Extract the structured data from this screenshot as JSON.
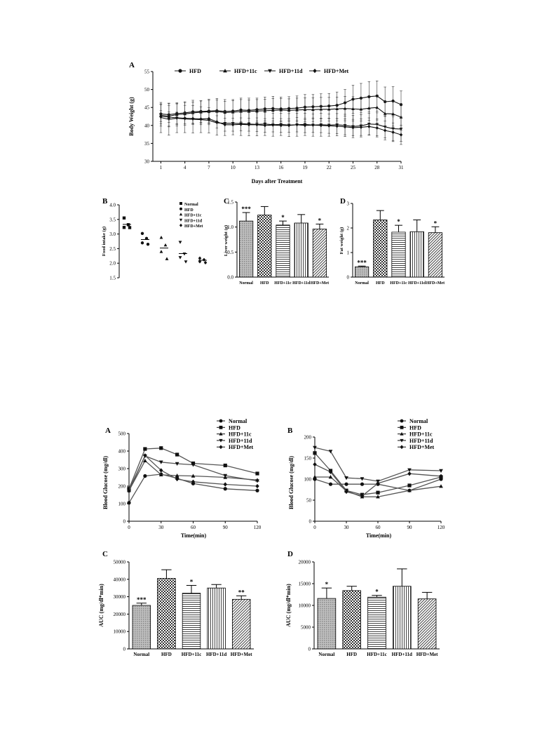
{
  "figure1": {
    "A": {
      "letter": "A",
      "xlabel": "Days after Treatment",
      "ylabel": "Body Weight (g)",
      "xticks": [
        1,
        4,
        7,
        10,
        13,
        16,
        19,
        22,
        25,
        28,
        31
      ],
      "yticks": [
        30,
        35,
        40,
        45,
        50,
        55
      ]
    },
    "B": {
      "letter": "B",
      "ylabel": "Food intake (g)",
      "yticks": [
        "1.5",
        "2.0",
        "2.5",
        "3.0",
        "3.5",
        "4.0"
      ]
    },
    "C": {
      "letter": "C",
      "ylabel": "Liver weight (g)",
      "yticks": [
        "0.0",
        "0.5",
        "1.0",
        "1.5"
      ],
      "significance": [
        "***",
        "",
        "*",
        "",
        "*"
      ]
    },
    "D": {
      "letter": "D",
      "ylabel": "Fat weight (g)",
      "yticks": [
        "0",
        "1",
        "2",
        "3"
      ],
      "significance": [
        "***",
        "",
        "*",
        "",
        "*"
      ]
    }
  },
  "figure2": {
    "A": {
      "letter": "A",
      "xlabel": "Time(min)",
      "ylabel": "Blood Glucose (mg/dl)",
      "xticks": [
        0,
        30,
        60,
        90,
        120
      ],
      "yticks": [
        0,
        100,
        200,
        300,
        400,
        500
      ]
    },
    "B": {
      "letter": "B",
      "xlabel": "Time(min)",
      "ylabel": "Blood Glucose (mg/dl)",
      "xticks": [
        0,
        30,
        60,
        90,
        120
      ],
      "yticks": [
        0,
        50,
        100,
        150,
        200
      ]
    },
    "C": {
      "letter": "C",
      "ylabel": "AUC (mg/dl*min)",
      "yticks": [
        0,
        10000,
        20000,
        30000,
        40000,
        50000
      ],
      "significance": [
        "***",
        "",
        "*",
        "",
        "**"
      ]
    },
    "D": {
      "letter": "D",
      "ylabel": "AUC (mg/dl*min)",
      "yticks": [
        0,
        5000,
        10000,
        15000,
        20000
      ],
      "significance": [
        "*",
        "",
        "*",
        "",
        ""
      ]
    }
  },
  "chart_data": [
    {
      "panel": "1A",
      "type": "line",
      "xlabel": "Days after Treatment",
      "ylabel": "Body Weight (g)",
      "xlim": [
        0,
        31
      ],
      "ylim": [
        30,
        55
      ],
      "x": [
        1,
        2,
        3,
        4,
        5,
        6,
        7,
        8,
        9,
        10,
        11,
        12,
        13,
        14,
        15,
        16,
        17,
        18,
        19,
        20,
        21,
        22,
        23,
        24,
        25,
        26,
        27,
        28,
        29,
        30,
        31
      ],
      "series": [
        {
          "name": "HFD",
          "marker": "circle",
          "values": [
            43.2,
            43.0,
            43.3,
            43.5,
            43.8,
            43.9,
            44.0,
            44.1,
            43.9,
            44.0,
            44.3,
            44.2,
            44.4,
            44.6,
            44.7,
            44.6,
            44.7,
            44.8,
            45.1,
            45.2,
            45.3,
            45.4,
            45.6,
            46.3,
            47.3,
            47.6,
            48.0,
            48.2,
            46.6,
            46.8,
            45.8
          ],
          "error": [
            2.8,
            3.2,
            3.0,
            3.1,
            3.2,
            3.0,
            3.3,
            3.4,
            3.3,
            3.2,
            3.3,
            3.4,
            3.2,
            3.3,
            3.4,
            3.3,
            3.3,
            3.4,
            3.5,
            3.4,
            3.5,
            3.5,
            3.7,
            3.7,
            3.9,
            4.1,
            4.2,
            4.2,
            4.1,
            4.0,
            3.8
          ]
        },
        {
          "name": "HFD+11c",
          "marker": "triangle-up",
          "values": [
            42.8,
            42.6,
            43.0,
            43.2,
            43.5,
            43.7,
            43.8,
            43.9,
            43.6,
            43.7,
            43.9,
            43.9,
            44.0,
            44.1,
            44.2,
            44.3,
            44.2,
            44.3,
            44.4,
            44.4,
            44.5,
            44.5,
            44.6,
            44.7,
            44.6,
            44.5,
            44.8,
            45.0,
            43.3,
            43.2,
            42.3
          ],
          "error": [
            3.0,
            3.0,
            3.1,
            3.1,
            3.0,
            3.1,
            3.2,
            3.2,
            3.1,
            3.2,
            3.3,
            3.2,
            3.2,
            3.2,
            3.3,
            3.2,
            3.2,
            3.3,
            3.3,
            3.3,
            3.3,
            3.3,
            3.3,
            3.4,
            3.4,
            3.3,
            3.4,
            3.5,
            3.5,
            3.4,
            3.6
          ]
        },
        {
          "name": "HFD+11d",
          "marker": "triangle-down",
          "values": [
            42.2,
            41.7,
            42.0,
            41.8,
            41.7,
            41.6,
            41.4,
            40.7,
            40.6,
            40.6,
            40.5,
            40.4,
            40.3,
            40.4,
            40.2,
            40.3,
            40.1,
            40.2,
            40.3,
            40.1,
            40.2,
            40.1,
            40.2,
            40.0,
            39.7,
            39.9,
            40.4,
            40.3,
            39.6,
            39.1,
            39.0
          ],
          "error": [
            4.2,
            4.4,
            4.0,
            3.8,
            3.8,
            3.6,
            3.5,
            3.4,
            3.4,
            3.2,
            3.3,
            3.3,
            3.2,
            3.2,
            3.2,
            3.1,
            3.2,
            3.2,
            3.1,
            3.1,
            3.2,
            3.1,
            3.1,
            3.1,
            3.1,
            3.1,
            3.0,
            3.2,
            3.1,
            3.3,
            3.4
          ]
        },
        {
          "name": "HFD+Met",
          "marker": "diamond",
          "values": [
            42.6,
            42.3,
            42.1,
            42.0,
            41.9,
            41.8,
            41.9,
            41.0,
            40.2,
            40.2,
            40.3,
            40.2,
            40.2,
            40.0,
            40.1,
            40.0,
            40.0,
            40.2,
            40.0,
            40.1,
            40.0,
            39.9,
            39.8,
            39.6,
            39.4,
            39.5,
            39.7,
            39.3,
            38.6,
            38.1,
            37.4
          ],
          "error": [
            1.5,
            1.5,
            1.6,
            1.6,
            1.6,
            1.6,
            1.7,
            1.7,
            1.8,
            1.8,
            1.8,
            1.8,
            1.9,
            1.9,
            1.9,
            1.9,
            1.9,
            2.0,
            2.0,
            2.0,
            2.0,
            2.1,
            2.1,
            2.2,
            2.3,
            2.3,
            2.4,
            2.5,
            2.6,
            2.6,
            2.7
          ]
        }
      ]
    },
    {
      "panel": "1B",
      "type": "scatter",
      "ylabel": "Food intake (g)",
      "ylim": [
        1.5,
        4.0
      ],
      "groups": [
        {
          "name": "Normal",
          "marker": "square",
          "points": [
            3.55,
            3.32,
            3.25,
            3.22
          ],
          "mean": 3.33
        },
        {
          "name": "HFD",
          "marker": "circle",
          "points": [
            3.02,
            2.85,
            2.72,
            2.65
          ],
          "mean": 2.81
        },
        {
          "name": "HFD+11c",
          "marker": "triangle-up",
          "points": [
            2.88,
            2.62,
            2.42,
            2.15
          ],
          "mean": 2.52
        },
        {
          "name": "HFD+11d",
          "marker": "triangle-down",
          "points": [
            2.72,
            2.32,
            2.22,
            2.05
          ],
          "mean": 2.33
        },
        {
          "name": "HFD+Met",
          "marker": "diamond",
          "points": [
            2.17,
            2.12,
            2.08,
            2.02
          ],
          "mean": 2.1
        }
      ]
    },
    {
      "panel": "1C",
      "type": "bar",
      "ylabel": "Liver weight (g)",
      "ylim": [
        0,
        1.5
      ],
      "categories": [
        "Normal",
        "HFD",
        "HFD+11c",
        "HFD+11d",
        "HFD+Met"
      ],
      "values": [
        1.12,
        1.24,
        1.04,
        1.08,
        0.96
      ],
      "error": [
        0.17,
        0.17,
        0.08,
        0.17,
        0.1
      ]
    },
    {
      "panel": "1D",
      "type": "bar",
      "ylabel": "Fat weight (g)",
      "ylim": [
        0,
        3
      ],
      "categories": [
        "Normal",
        "HFD",
        "HFD+11c",
        "HFD+11d",
        "HFD+Met"
      ],
      "values": [
        0.42,
        2.33,
        1.83,
        1.85,
        1.81
      ],
      "error": [
        0.03,
        0.38,
        0.28,
        0.48,
        0.24
      ]
    },
    {
      "panel": "2A",
      "type": "line",
      "xlabel": "Time(min)",
      "ylabel": "Blood Glucose (mg/dl)",
      "xlim": [
        0,
        120
      ],
      "ylim": [
        0,
        500
      ],
      "x": [
        0,
        15,
        30,
        45,
        60,
        90,
        120
      ],
      "series": [
        {
          "name": "Normal",
          "marker": "circle",
          "values": [
            105,
            258,
            268,
            245,
            215,
            185,
            175
          ]
        },
        {
          "name": "HFD",
          "marker": "square",
          "values": [
            185,
            412,
            417,
            380,
            330,
            318,
            272
          ]
        },
        {
          "name": "HFD+11c",
          "marker": "triangle-up",
          "values": [
            175,
            345,
            265,
            260,
            258,
            250,
            235
          ]
        },
        {
          "name": "HFD+11d",
          "marker": "triangle-down",
          "values": [
            180,
            372,
            337,
            328,
            322,
            260,
            230
          ]
        },
        {
          "name": "HFD+Met",
          "marker": "diamond",
          "values": [
            172,
            375,
            290,
            240,
            225,
            210,
            200
          ]
        }
      ]
    },
    {
      "panel": "2B",
      "type": "line",
      "xlabel": "Time(min)",
      "ylabel": "Blood Glucose (mg/dl)",
      "xlim": [
        0,
        120
      ],
      "ylim": [
        0,
        200
      ],
      "x": [
        0,
        15,
        30,
        45,
        60,
        90,
        120
      ],
      "series": [
        {
          "name": "Normal",
          "marker": "circle",
          "values": [
            100,
            88,
            88,
            88,
            88,
            73,
            100
          ]
        },
        {
          "name": "HFD",
          "marker": "square",
          "values": [
            162,
            120,
            73,
            63,
            68,
            85,
            105
          ]
        },
        {
          "name": "HFD+11c",
          "marker": "triangle-up",
          "values": [
            105,
            105,
            72,
            58,
            58,
            73,
            83
          ]
        },
        {
          "name": "HFD+11d",
          "marker": "triangle-down",
          "values": [
            175,
            166,
            103,
            101,
            95,
            122,
            120
          ]
        },
        {
          "name": "HFD+Met",
          "marker": "diamond",
          "values": [
            135,
            117,
            70,
            60,
            90,
            113,
            107
          ]
        }
      ]
    },
    {
      "panel": "2C",
      "type": "bar",
      "ylabel": "AUC (mg/dl*min)",
      "ylim": [
        0,
        50000
      ],
      "categories": [
        "Normal",
        "HFD",
        "HFD+11c",
        "HFD+11d",
        "HFD+Met"
      ],
      "values": [
        25000,
        40500,
        32000,
        35000,
        28500
      ],
      "error": [
        1300,
        5000,
        4500,
        2000,
        2000
      ]
    },
    {
      "panel": "2D",
      "type": "bar",
      "ylabel": "AUC (mg/dl*min)",
      "ylim": [
        0,
        20000
      ],
      "categories": [
        "Normal",
        "HFD",
        "HFD+11c",
        "HFD+11d",
        "HFD+Met"
      ],
      "values": [
        11600,
        13400,
        11900,
        14400,
        11500
      ],
      "error": [
        2400,
        1000,
        400,
        4000,
        1500
      ]
    }
  ]
}
